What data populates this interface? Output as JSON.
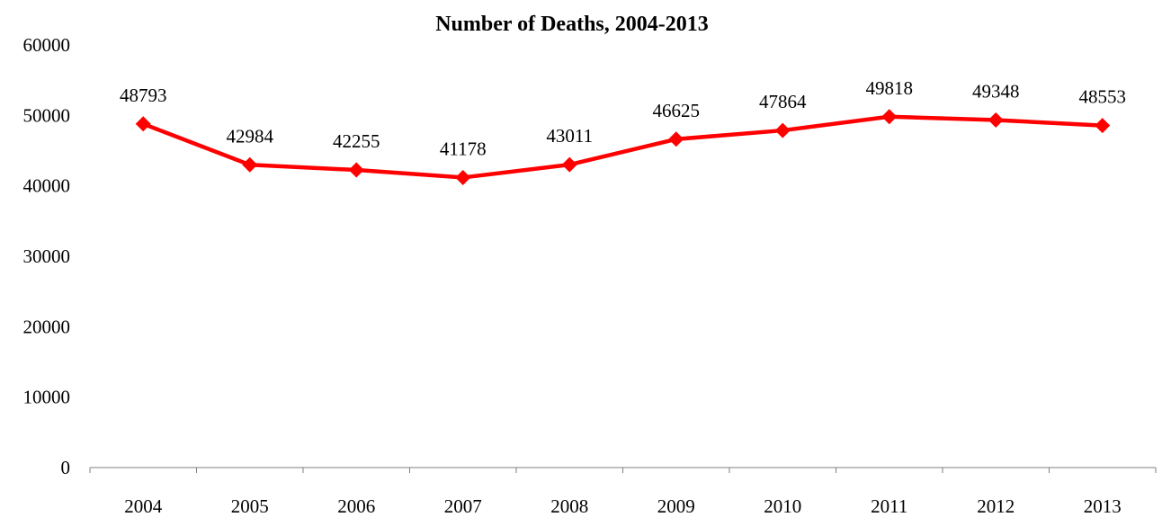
{
  "chart_data": {
    "type": "line",
    "title": "Number of Deaths, 2004-2013",
    "categories": [
      "2004",
      "2005",
      "2006",
      "2007",
      "2008",
      "2009",
      "2010",
      "2011",
      "2012",
      "2013"
    ],
    "series": [
      {
        "values": [
          48793,
          42984,
          42255,
          41178,
          43011,
          46625,
          47864,
          49818,
          49348,
          48553
        ],
        "color": "#ff0000",
        "marker": "diamond"
      }
    ],
    "ylim": [
      0,
      60000
    ],
    "yticks": [
      0,
      10000,
      20000,
      30000,
      40000,
      50000,
      60000
    ],
    "data_labels": [
      "48793",
      "42984",
      "42255",
      "41178",
      "43011",
      "46625",
      "47864",
      "49818",
      "49348",
      "48553"
    ],
    "grid": false,
    "legend": "none"
  }
}
